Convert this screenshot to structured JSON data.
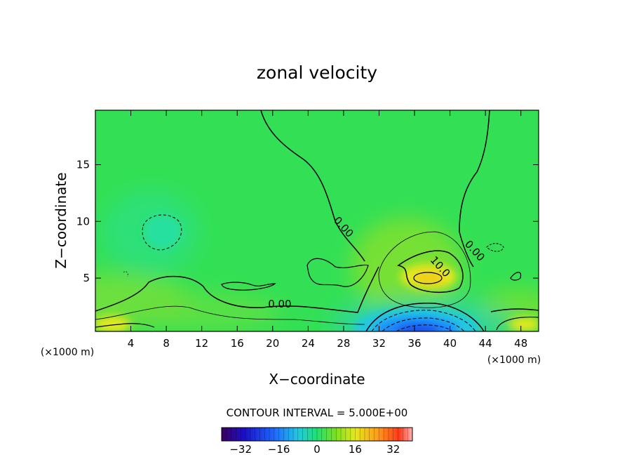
{
  "chart_data": {
    "type": "heatmap",
    "title": "zonal velocity",
    "xlabel": "X−coordinate",
    "ylabel": "Z−coordinate",
    "x_unit_left": "(×1000 m)",
    "x_unit_right": "(×1000 m)",
    "xlim": [
      0,
      50
    ],
    "ylim": [
      0.3,
      19.8
    ],
    "x_ticks": [
      4,
      8,
      12,
      16,
      20,
      24,
      28,
      32,
      36,
      40,
      44,
      48
    ],
    "x_tick_labels": [
      "4",
      "8",
      "12",
      "16",
      "20",
      "24",
      "28",
      "32",
      "36",
      "40",
      "44",
      "48"
    ],
    "y_ticks": [
      5,
      10,
      15
    ],
    "y_tick_labels": [
      "5",
      "10",
      "15"
    ],
    "contour_interval_label": "CONTOUR INTERVAL = 5.000E+00",
    "contour_labels": [
      {
        "text": "0.00",
        "x": 27.7,
        "y": 9.3,
        "angle": 48
      },
      {
        "text": "10.0",
        "x": 38.6,
        "y": 5.8,
        "angle": 48
      },
      {
        "text": "0.00",
        "x": 42.5,
        "y": 7.2,
        "angle": 48
      },
      {
        "text": "0.00",
        "x": 20.8,
        "y": 2.4,
        "angle": 0
      }
    ],
    "colorbar": {
      "min": -40,
      "max": 40,
      "ticks": [
        -32,
        -16,
        0,
        16,
        32
      ],
      "tick_labels": [
        "−32",
        "−16",
        "0",
        "16",
        "32"
      ]
    },
    "field_features": [
      {
        "x": 37,
        "y": 5,
        "value": 15
      },
      {
        "x": 36.5,
        "y": 1.0,
        "value": -27
      },
      {
        "x": 8,
        "y": 9,
        "value": -3
      },
      {
        "x": 2,
        "y": 0.5,
        "value": 14
      },
      {
        "x": 48,
        "y": 0.6,
        "value": 12
      }
    ]
  }
}
